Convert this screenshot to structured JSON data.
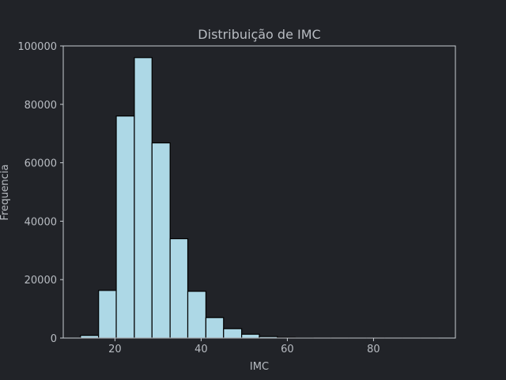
{
  "chart_data": {
    "type": "histogram",
    "title": "Distribuição de IMC",
    "xlabel": "IMC",
    "ylabel": "Frequencia",
    "xlim": [
      8,
      99
    ],
    "ylim": [
      0,
      100000
    ],
    "xticks": [
      20,
      40,
      60,
      80
    ],
    "yticks": [
      0,
      20000,
      40000,
      60000,
      80000,
      100000
    ],
    "bin_edges": [
      12.0,
      16.2,
      20.3,
      24.5,
      28.6,
      32.8,
      36.9,
      41.1,
      45.2,
      49.4,
      53.5,
      57.7,
      61.8,
      66.0,
      70.1,
      74.3,
      78.4,
      82.6,
      86.7,
      90.9,
      95.0
    ],
    "counts": [
      900,
      16300,
      76000,
      96000,
      66800,
      34000,
      16000,
      7000,
      3200,
      1300,
      500,
      200,
      100,
      50,
      30,
      20,
      10,
      5,
      3,
      2
    ],
    "bar_color": "#add8e6",
    "edge_color": "#000000",
    "grid": false
  }
}
